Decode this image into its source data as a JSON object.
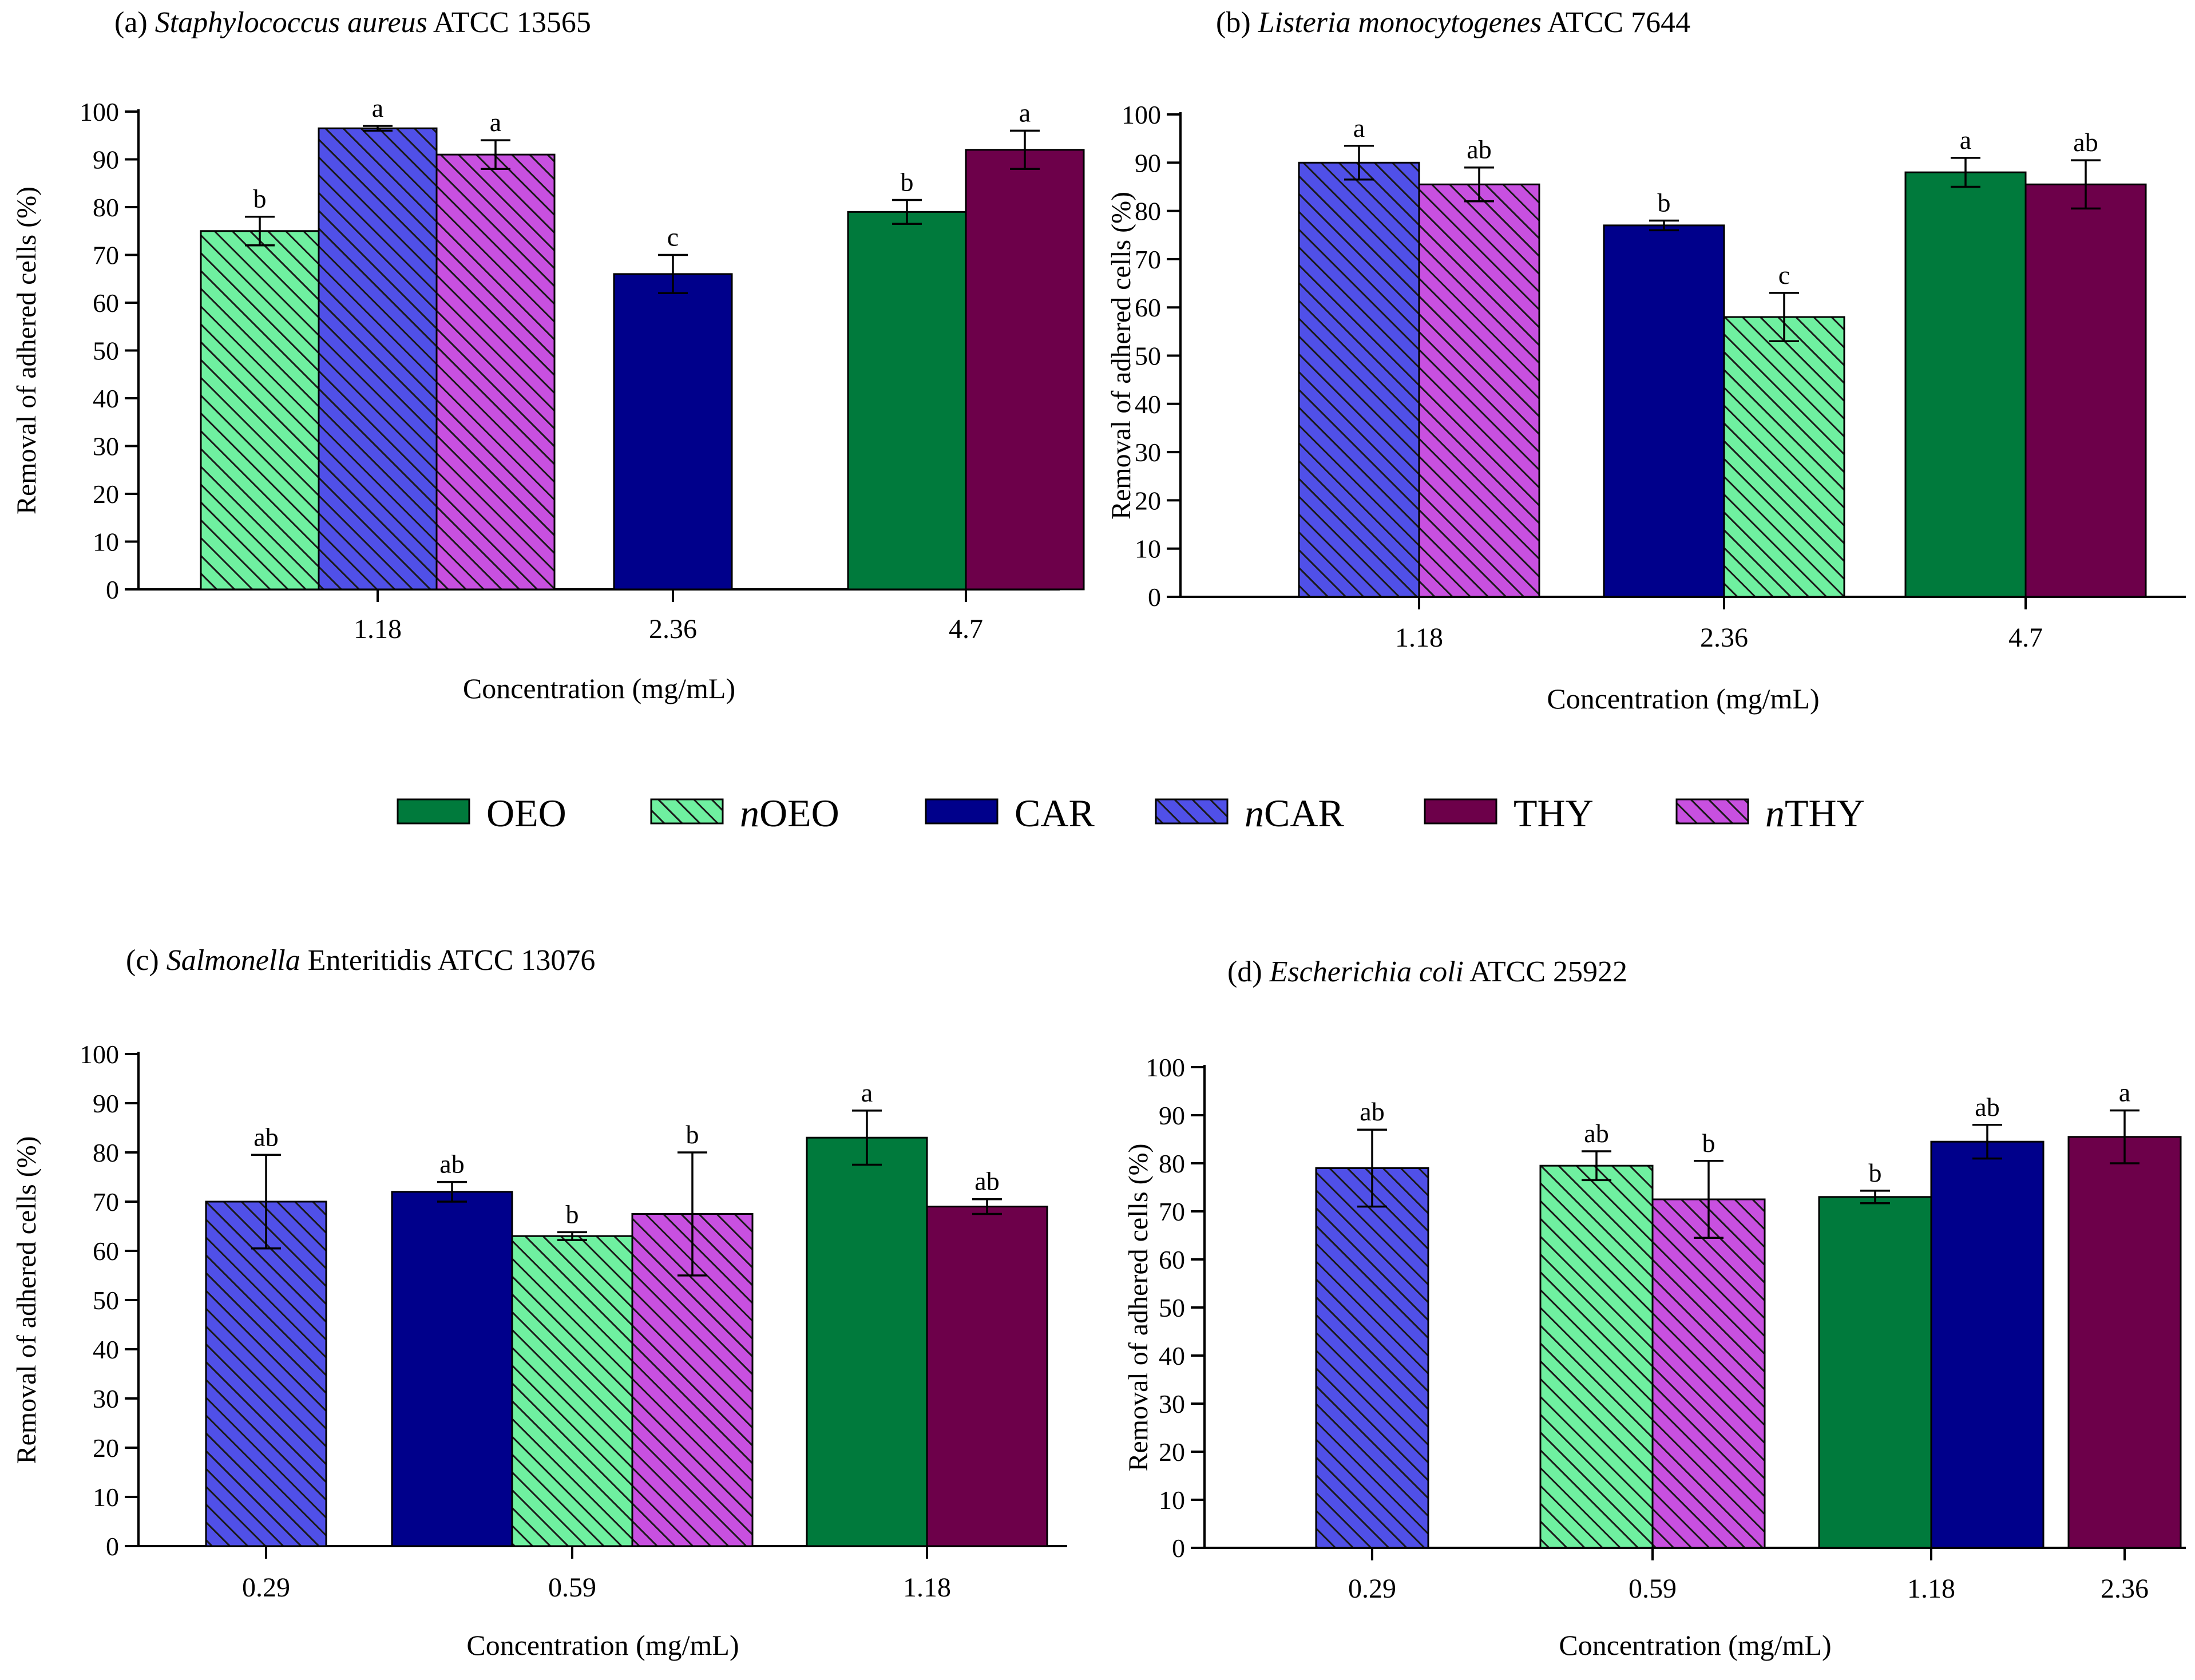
{
  "legend": [
    {
      "key": "OEO",
      "prefix": "",
      "label": "OEO",
      "color": "#007a3c",
      "hatch": false
    },
    {
      "key": "nOEO",
      "prefix": "n",
      "label": "OEO",
      "color": "#6ff0a0",
      "hatch": true
    },
    {
      "key": "CAR",
      "prefix": "",
      "label": "CAR",
      "color": "#00008b",
      "hatch": false
    },
    {
      "key": "nCAR",
      "prefix": "n",
      "label": "CAR",
      "color": "#5050e8",
      "hatch": true
    },
    {
      "key": "THY",
      "prefix": "",
      "label": "THY",
      "color": "#6d004a",
      "hatch": false
    },
    {
      "key": "nTHY",
      "prefix": "n",
      "label": "THY",
      "color": "#c850e0",
      "hatch": true
    }
  ],
  "chart_data": [
    {
      "type": "bar",
      "panel": "(a)",
      "organism_italic": "Staphylococcus aureus",
      "organism_rest": "ATCC 13565",
      "xlabel": "Concentration (mg/mL)",
      "ylabel": "Removal of adhered cells (%)",
      "ylim": [
        0,
        100
      ],
      "yticks": [
        "0",
        "10",
        "20",
        "30",
        "40",
        "50",
        "60",
        "70",
        "80",
        "90",
        "100"
      ],
      "categories": [
        "1.18",
        "2.36",
        "4.7"
      ],
      "groups": [
        {
          "category": "1.18",
          "bars": [
            {
              "series": "nOEO",
              "value": 75,
              "err": 3,
              "letter": "b"
            },
            {
              "series": "nCAR",
              "value": 96.5,
              "err": 0.5,
              "letter": "a"
            },
            {
              "series": "nTHY",
              "value": 91,
              "err": 3,
              "letter": "a"
            }
          ]
        },
        {
          "category": "2.36",
          "bars": [
            {
              "series": "CAR",
              "value": 66,
              "err": 4,
              "letter": "c"
            }
          ]
        },
        {
          "category": "4.7",
          "bars": [
            {
              "series": "OEO",
              "value": 79,
              "err": 2.5,
              "letter": "b"
            },
            {
              "series": "THY",
              "value": 92,
              "err": 4,
              "letter": "a"
            }
          ]
        }
      ]
    },
    {
      "type": "bar",
      "panel": "(b)",
      "organism_italic": "Listeria monocytogenes",
      "organism_rest": "ATCC 7644",
      "xlabel": "Concentration (mg/mL)",
      "ylabel": "Removal of adhered cells (%)",
      "ylim": [
        0,
        100
      ],
      "yticks": [
        "0",
        "10",
        "20",
        "30",
        "40",
        "50",
        "60",
        "70",
        "80",
        "90",
        "100"
      ],
      "categories": [
        "1.18",
        "2.36",
        "4.7"
      ],
      "groups": [
        {
          "category": "1.18",
          "bars": [
            {
              "series": "nCAR",
              "value": 90,
              "err": 3.5,
              "letter": "a"
            },
            {
              "series": "nTHY",
              "value": 85.5,
              "err": 3.5,
              "letter": "ab"
            }
          ]
        },
        {
          "category": "2.36",
          "bars": [
            {
              "series": "CAR",
              "value": 77,
              "err": 1,
              "letter": "b"
            },
            {
              "series": "nOEO",
              "value": 58,
              "err": 5,
              "letter": "c"
            }
          ]
        },
        {
          "category": "4.7",
          "bars": [
            {
              "series": "OEO",
              "value": 88,
              "err": 3,
              "letter": "a"
            },
            {
              "series": "THY",
              "value": 85.5,
              "err": 5,
              "letter": "ab"
            }
          ]
        }
      ]
    },
    {
      "type": "bar",
      "panel": "(c)",
      "organism_italic": "Salmonella",
      "organism_rest": "Enteritidis ATCC 13076",
      "xlabel": "Concentration (mg/mL)",
      "ylabel": "Removal of adhered cells (%)",
      "ylim": [
        0,
        100
      ],
      "yticks": [
        "0",
        "10",
        "20",
        "30",
        "40",
        "50",
        "60",
        "70",
        "80",
        "90",
        "100"
      ],
      "categories": [
        "0.29",
        "0.59",
        "1.18"
      ],
      "groups": [
        {
          "category": "0.29",
          "bars": [
            {
              "series": "nCAR",
              "value": 70,
              "err": 9.5,
              "letter": "ab"
            }
          ]
        },
        {
          "category": "0.59",
          "bars": [
            {
              "series": "CAR",
              "value": 72,
              "err": 2,
              "letter": "ab"
            },
            {
              "series": "nOEO",
              "value": 63,
              "err": 0.8,
              "letter": "b"
            },
            {
              "series": "nTHY",
              "value": 67.5,
              "err": 12.5,
              "letter": "b"
            }
          ]
        },
        {
          "category": "1.18",
          "bars": [
            {
              "series": "OEO",
              "value": 83,
              "err": 5.5,
              "letter": "a"
            },
            {
              "series": "THY",
              "value": 69,
              "err": 1.5,
              "letter": "ab"
            }
          ]
        }
      ]
    },
    {
      "type": "bar",
      "panel": "(d)",
      "organism_italic": "Escherichia coli",
      "organism_rest": "ATCC 25922",
      "xlabel": "Concentration (mg/mL)",
      "ylabel": "Removal of adhered cells (%)",
      "ylim": [
        0,
        100
      ],
      "yticks": [
        "0",
        "10",
        "20",
        "30",
        "40",
        "50",
        "60",
        "70",
        "80",
        "90",
        "100"
      ],
      "categories": [
        "0.29",
        "0.59",
        "1.18",
        "2.36"
      ],
      "groups": [
        {
          "category": "0.29",
          "bars": [
            {
              "series": "nCAR",
              "value": 79,
              "err": 8,
              "letter": "ab"
            }
          ]
        },
        {
          "category": "0.59",
          "bars": [
            {
              "series": "nOEO",
              "value": 79.5,
              "err": 3,
              "letter": "ab"
            },
            {
              "series": "nTHY",
              "value": 72.5,
              "err": 8,
              "letter": "b"
            }
          ]
        },
        {
          "category": "1.18",
          "bars": [
            {
              "series": "OEO",
              "value": 73,
              "err": 1.3,
              "letter": "b"
            },
            {
              "series": "CAR",
              "value": 84.5,
              "err": 3.5,
              "letter": "ab"
            }
          ]
        },
        {
          "category": "2.36",
          "bars": [
            {
              "series": "THY",
              "value": 85.5,
              "err": 5.5,
              "letter": "a"
            }
          ]
        }
      ]
    }
  ]
}
